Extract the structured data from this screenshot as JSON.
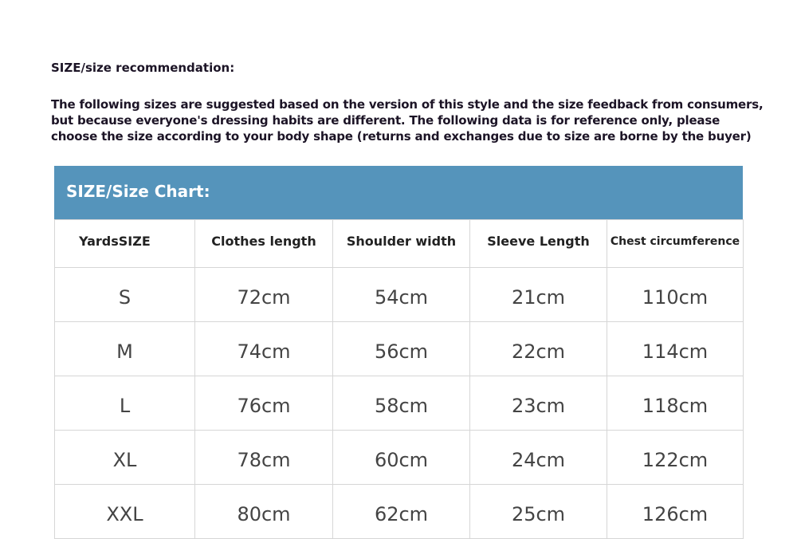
{
  "title": "SIZE/size recommendation:",
  "intro_lines": [
    "The following sizes are suggested based on the version of this style and the size feedback from consumers,",
    "but because everyone's dressing habits are different. The following data is for reference only, please",
    "choose the size according to your body shape (returns and exchanges due to size are borne by the buyer)"
  ],
  "table": {
    "banner": "SIZE/Size Chart:",
    "banner_color": "#5594bb",
    "columns": [
      "YardsSIZE",
      "Clothes length",
      "Shoulder width",
      "Sleeve Length",
      "Chest circumference"
    ],
    "rows": [
      [
        "S",
        "72cm",
        "54cm",
        "21cm",
        "110cm"
      ],
      [
        "M",
        "74cm",
        "56cm",
        "22cm",
        "114cm"
      ],
      [
        "L",
        "76cm",
        "58cm",
        "23cm",
        "118cm"
      ],
      [
        "XL",
        "78cm",
        "60cm",
        "24cm",
        "122cm"
      ],
      [
        "XXL",
        "80cm",
        "62cm",
        "25cm",
        "126cm"
      ]
    ]
  }
}
